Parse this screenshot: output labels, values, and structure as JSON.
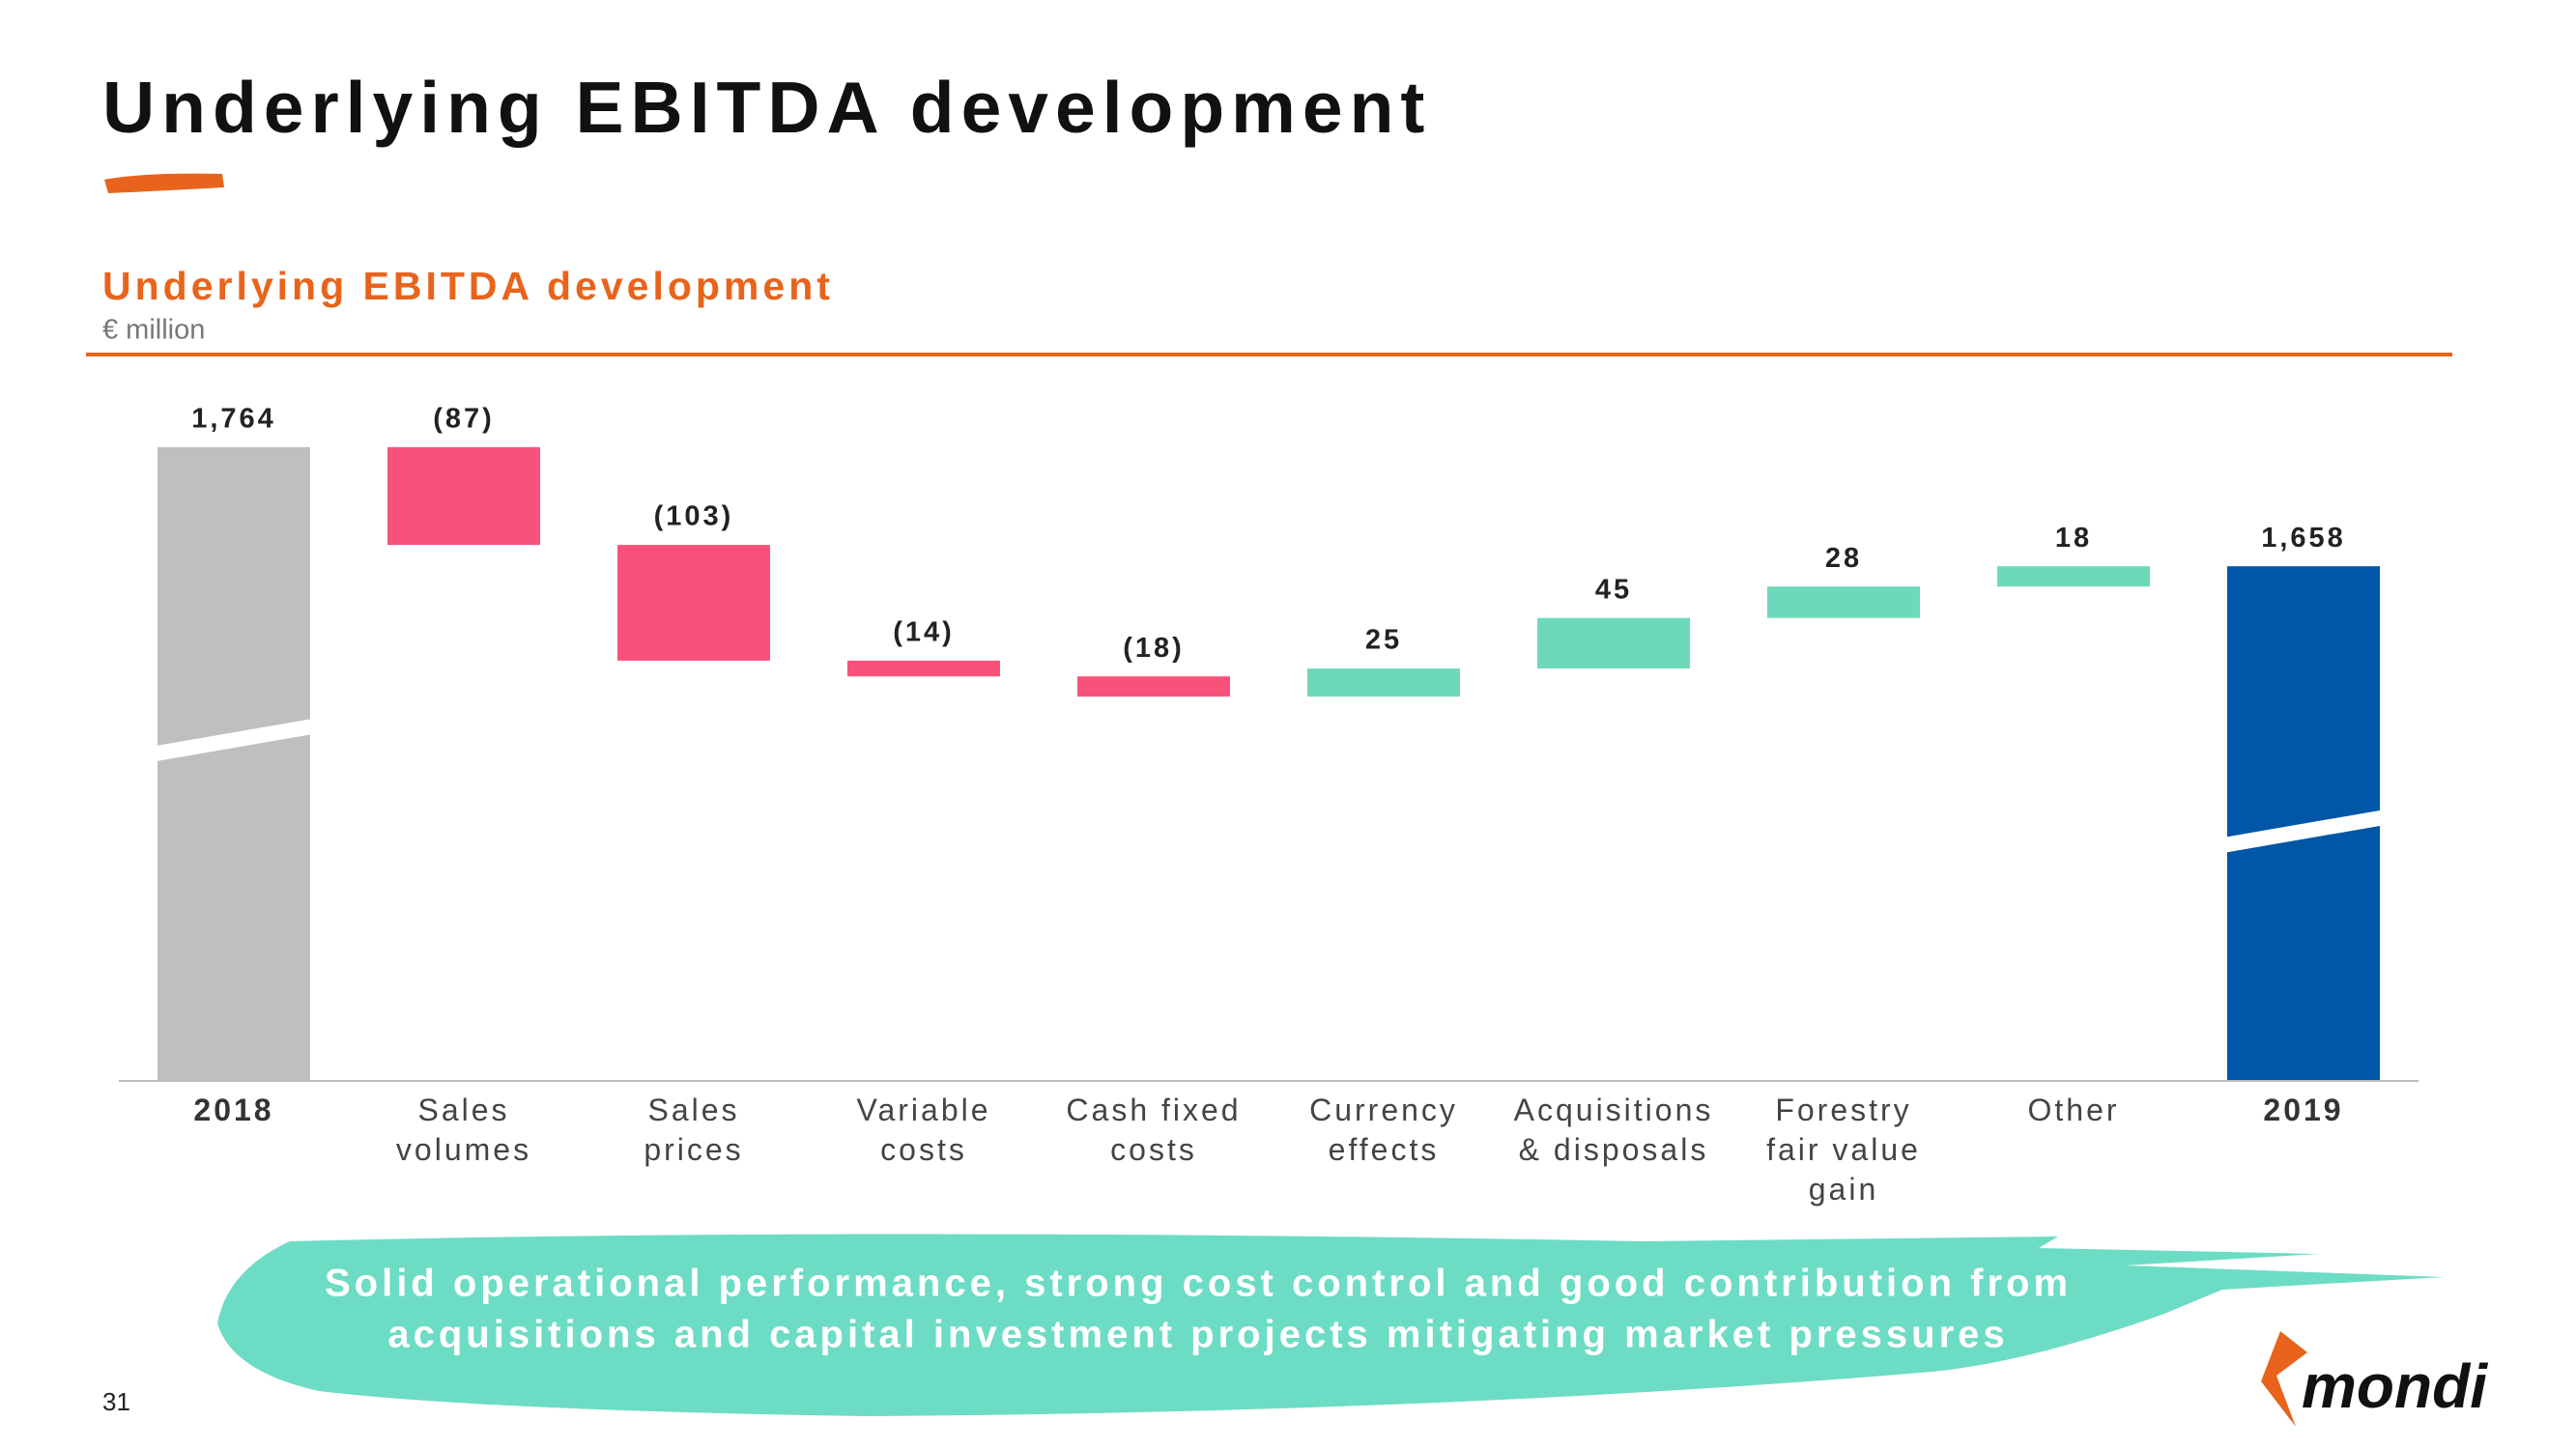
{
  "title": "Underlying EBITDA development",
  "chart_data": {
    "type": "waterfall",
    "title": "Underlying EBITDA development",
    "subtitle": "€ million",
    "categories": [
      "2018",
      "Sales\nvolumes",
      "Sales\nprices",
      "Variable\ncosts",
      "Cash fixed\ncosts",
      "Currency\neffects",
      "Acquisitions\n& disposals",
      "Forestry\nfair value\ngain",
      "Other",
      "2019"
    ],
    "values": [
      1764,
      -87,
      -103,
      -14,
      -18,
      25,
      45,
      28,
      18,
      1658
    ],
    "value_labels": [
      "1,764",
      "(87)",
      "(103)",
      "(14)",
      "(18)",
      "25",
      "45",
      "28",
      "18",
      "1,658"
    ],
    "colors": [
      "#bfbfbf",
      "#f9527a",
      "#f9527a",
      "#f9527a",
      "#f9527a",
      "#6dd9bb",
      "#6dd9bb",
      "#6dd9bb",
      "#6dd9bb",
      "#0057a8"
    ],
    "ylim": [
      1200,
      1800
    ],
    "axis_break": true
  },
  "banner": [
    "Solid operational performance, strong cost control and good contribution from",
    "acquisitions and capital investment projects mitigating market pressures"
  ],
  "page_number": "31",
  "logo": "mondi"
}
